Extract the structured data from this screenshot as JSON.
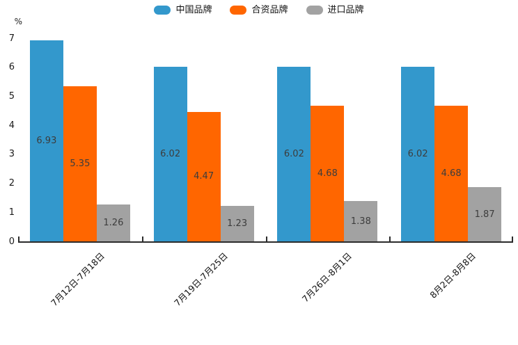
{
  "chart_data": {
    "type": "bar",
    "title": "",
    "unit_label": "%",
    "categories": [
      "7月12日-7月18日",
      "7月19日-7月25日",
      "7月26日-8月1日",
      "8月2日-8月8日"
    ],
    "series": [
      {
        "name": "中国品牌",
        "color": "#3398CC",
        "values": [
          6.93,
          6.02,
          6.02,
          6.02
        ]
      },
      {
        "name": "合资品牌",
        "color": "#FF6600",
        "values": [
          5.35,
          4.47,
          4.68,
          4.68
        ]
      },
      {
        "name": "进口品牌",
        "color": "#A2A2A2",
        "values": [
          1.26,
          1.23,
          1.38,
          1.87
        ]
      }
    ],
    "bar_value_labels": [
      [
        "6.93",
        "6.02",
        "6.02",
        "6.02"
      ],
      [
        "5.35",
        "4.47",
        "4.68",
        "4.68"
      ],
      [
        "1.26",
        "1.23",
        "1.38",
        "1.87"
      ]
    ],
    "ylim": [
      0,
      7
    ],
    "yticks": [
      "0",
      "1",
      "2",
      "3",
      "4",
      "5",
      "6",
      "7"
    ],
    "grid": false,
    "legend_position": "top",
    "legend_labels": [
      "中国品牌",
      "合资品牌",
      "进口品牌"
    ]
  },
  "colors": {
    "background": "#ffffff",
    "axis_line": "#2b2b2b",
    "tick_text": "#1a1a1a",
    "value_label_text": "#3c3c3c",
    "series_blue": "#3398CC",
    "series_orange": "#FF6600",
    "series_gray": "#A2A2A2"
  }
}
